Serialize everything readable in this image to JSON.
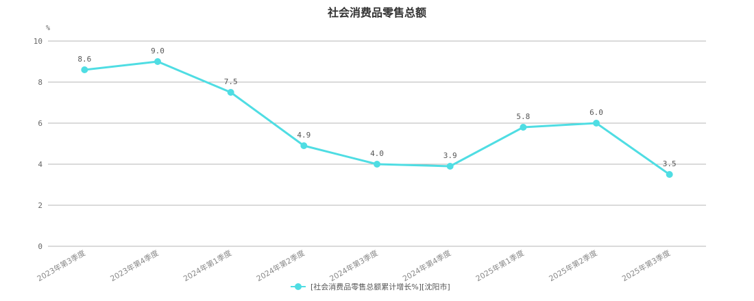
{
  "chart_data": {
    "type": "line",
    "title": "社会消费品零售总额",
    "unit_label": "%",
    "ylim": [
      0,
      10
    ],
    "yticks": [
      0,
      2,
      4,
      6,
      8,
      10
    ],
    "categories": [
      "2023年第3季度",
      "2023年第4季度",
      "2024年第1季度",
      "2024年第2季度",
      "2024年第3季度",
      "2024年第4季度",
      "2025年第1季度",
      "2025年第2季度",
      "2025年第3季度"
    ],
    "series": [
      {
        "name": "[社会消费品零售总额累计增长%][沈阳市]",
        "values": [
          8.6,
          9.0,
          7.5,
          4.9,
          4.0,
          3.9,
          5.8,
          6.0,
          3.5
        ],
        "labels": [
          "8.6",
          "9.0",
          "7.5",
          "4.9",
          "4.0",
          "3.9",
          "5.8",
          "6.0",
          "3.5"
        ],
        "color": "#4fdde3"
      }
    ],
    "grid": true,
    "legend_position": "bottom-center"
  }
}
